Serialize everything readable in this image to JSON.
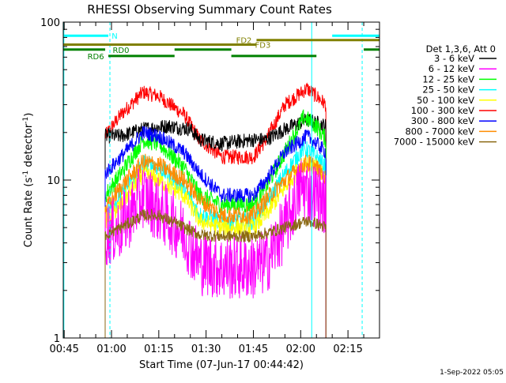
{
  "chart_data": {
    "type": "line",
    "title": "RHESSI Observing Summary Count Rates",
    "xlabel": "Start Time (07-Jun-17 00:44:42)",
    "ylabel": "Count Rate (s",
    "ylabel_sup": "-1",
    "ylabel_tail": " detector",
    "ylabel_close": ")",
    "x_unit": "minutes after 00:45",
    "xlim": [
      -0.3,
      100
    ],
    "ylim": [
      1,
      100
    ],
    "yscale": "log",
    "grid": false,
    "legend_position": "right",
    "xtick_positions": [
      0,
      15,
      30,
      45,
      60,
      75,
      90
    ],
    "xtick_labels": [
      "00:45",
      "01:00",
      "01:15",
      "01:30",
      "01:45",
      "02:00",
      "02:15"
    ],
    "ytick_values": [
      1,
      10,
      100
    ],
    "ytick_labels": [
      "1",
      "10",
      "100"
    ],
    "legend_header": "Det 1,3,6, Att 0",
    "timestamp": "1-Sep-2022 05:05",
    "start_minute": 13,
    "end_minute": 83,
    "series": [
      {
        "name": "3 - 6 keV",
        "color": "#000000",
        "noise": 0.05,
        "profile": [
          [
            13,
            19
          ],
          [
            18,
            19
          ],
          [
            25,
            21
          ],
          [
            33,
            22
          ],
          [
            40,
            21
          ],
          [
            43,
            18
          ],
          [
            50,
            17
          ],
          [
            60,
            18
          ],
          [
            64,
            18
          ],
          [
            70,
            21
          ],
          [
            77,
            24
          ],
          [
            80,
            23
          ],
          [
            83,
            22
          ]
        ]
      },
      {
        "name": "6 - 12 keV",
        "color": "#ff00ff",
        "noise": 0.22,
        "profile": [
          [
            13,
            4.5
          ],
          [
            18,
            5
          ],
          [
            25,
            8
          ],
          [
            30,
            6.5
          ],
          [
            38,
            4.6
          ],
          [
            43,
            3
          ],
          [
            50,
            2.8
          ],
          [
            60,
            2.8
          ],
          [
            64,
            3
          ],
          [
            70,
            5
          ],
          [
            75,
            9
          ],
          [
            80,
            8
          ],
          [
            83,
            7
          ]
        ]
      },
      {
        "name": "12 - 25 keV",
        "color": "#00ff00",
        "noise": 0.06,
        "profile": [
          [
            13,
            8
          ],
          [
            18,
            11
          ],
          [
            25,
            18
          ],
          [
            30,
            17
          ],
          [
            38,
            12
          ],
          [
            43,
            8
          ],
          [
            50,
            7
          ],
          [
            60,
            7
          ],
          [
            64,
            9
          ],
          [
            70,
            15
          ],
          [
            76,
            25
          ],
          [
            80,
            22
          ],
          [
            83,
            18
          ]
        ]
      },
      {
        "name": "25 - 50 keV",
        "color": "#00ffff",
        "noise": 0.06,
        "profile": [
          [
            13,
            6
          ],
          [
            18,
            8
          ],
          [
            25,
            13
          ],
          [
            30,
            12
          ],
          [
            38,
            9
          ],
          [
            43,
            6
          ],
          [
            50,
            5.5
          ],
          [
            60,
            5.5
          ],
          [
            64,
            7
          ],
          [
            70,
            11
          ],
          [
            76,
            16
          ],
          [
            80,
            14
          ],
          [
            83,
            12
          ]
        ]
      },
      {
        "name": "50 - 100 keV",
        "color": "#ffff00",
        "noise": 0.06,
        "profile": [
          [
            13,
            5.5
          ],
          [
            18,
            7
          ],
          [
            25,
            11
          ],
          [
            30,
            10
          ],
          [
            38,
            8
          ],
          [
            43,
            5.5
          ],
          [
            50,
            5
          ],
          [
            60,
            5
          ],
          [
            64,
            6
          ],
          [
            70,
            9
          ],
          [
            76,
            13
          ],
          [
            80,
            12
          ],
          [
            83,
            10
          ]
        ]
      },
      {
        "name": "100 - 300 keV",
        "color": "#ff0000",
        "noise": 0.05,
        "profile": [
          [
            13,
            19
          ],
          [
            18,
            26
          ],
          [
            25,
            36
          ],
          [
            30,
            34
          ],
          [
            38,
            26
          ],
          [
            43,
            18
          ],
          [
            50,
            14
          ],
          [
            60,
            14
          ],
          [
            64,
            18
          ],
          [
            70,
            30
          ],
          [
            77,
            38
          ],
          [
            80,
            34
          ],
          [
            83,
            30
          ]
        ]
      },
      {
        "name": "300 - 800 keV",
        "color": "#0000ff",
        "noise": 0.05,
        "profile": [
          [
            13,
            11
          ],
          [
            18,
            14
          ],
          [
            25,
            20
          ],
          [
            30,
            19
          ],
          [
            38,
            15
          ],
          [
            43,
            11
          ],
          [
            50,
            8
          ],
          [
            60,
            8
          ],
          [
            64,
            10
          ],
          [
            70,
            15
          ],
          [
            77,
            19
          ],
          [
            80,
            17
          ],
          [
            83,
            15
          ]
        ]
      },
      {
        "name": "800 - 7000 keV",
        "color": "#ff8c00",
        "noise": 0.06,
        "profile": [
          [
            13,
            6.5
          ],
          [
            18,
            9
          ],
          [
            25,
            13
          ],
          [
            30,
            12.5
          ],
          [
            38,
            10
          ],
          [
            43,
            7.5
          ],
          [
            50,
            6
          ],
          [
            60,
            6
          ],
          [
            64,
            7.5
          ],
          [
            70,
            10
          ],
          [
            77,
            13
          ],
          [
            80,
            12
          ],
          [
            83,
            10
          ]
        ]
      },
      {
        "name": "7000 - 15000 keV",
        "color": "#8b6914",
        "noise": 0.04,
        "profile": [
          [
            13,
            4.5
          ],
          [
            18,
            5
          ],
          [
            25,
            6
          ],
          [
            30,
            6
          ],
          [
            38,
            5
          ],
          [
            43,
            4.5
          ],
          [
            50,
            4.4
          ],
          [
            60,
            4.4
          ],
          [
            64,
            4.6
          ],
          [
            70,
            5
          ],
          [
            77,
            5.5
          ],
          [
            80,
            5.3
          ],
          [
            83,
            5
          ]
        ]
      }
    ],
    "flag_bars": [
      {
        "label": "N",
        "color": "#00ffff",
        "value": 82,
        "start": -0.3,
        "end": 14,
        "label_minute": 16
      },
      {
        "label": "",
        "color": "#00ffff",
        "value": 82,
        "start": 85,
        "end": 100,
        "label_minute": 0
      },
      {
        "label": "FD2",
        "color": "#808000",
        "value": 77,
        "start": 61,
        "end": 100,
        "label_minute": 57
      },
      {
        "label": "FD3",
        "color": "#808000",
        "value": 72,
        "start": -0.3,
        "end": 61,
        "label_minute": 63
      },
      {
        "label": "RD0",
        "color": "#008000",
        "value": 67,
        "start": -0.3,
        "end": 13,
        "label_minute": 18
      },
      {
        "label": "",
        "color": "#008000",
        "value": 67,
        "start": 35,
        "end": 53,
        "label_minute": 0
      },
      {
        "label": "",
        "color": "#008000",
        "value": 67,
        "start": 95,
        "end": 100,
        "label_minute": 0
      },
      {
        "label": "RD6",
        "color": "#008000",
        "value": 61,
        "start": 14,
        "end": 35,
        "label_minute": 10
      },
      {
        "label": "",
        "color": "#008000",
        "value": 61,
        "start": 53,
        "end": 80,
        "label_minute": 0
      }
    ],
    "vlines": [
      {
        "x": -0.1,
        "color": "#00ffff",
        "dashed": false
      },
      {
        "x": 14.5,
        "color": "#00ffff",
        "dashed": true
      },
      {
        "x": 78.5,
        "color": "#00ffff",
        "dashed": false
      },
      {
        "x": 94.5,
        "color": "#00ffff",
        "dashed": true
      }
    ]
  }
}
